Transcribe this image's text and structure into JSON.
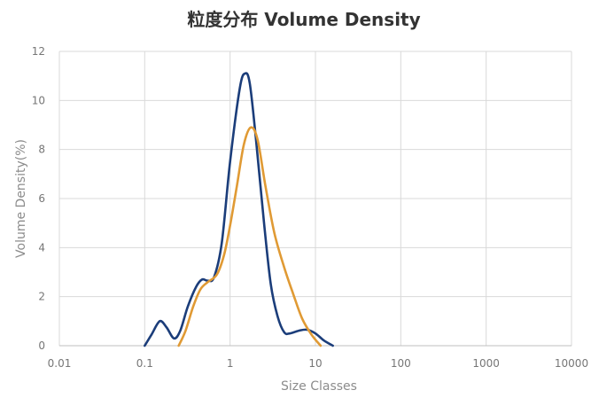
{
  "chart_data": {
    "type": "line",
    "title": "粒度分布 Volume Density",
    "xlabel": "Size Classes",
    "ylabel": "Volume Density(%)",
    "x_scale": "log",
    "xlim": [
      0.01,
      10000
    ],
    "ylim": [
      0,
      12
    ],
    "x_ticks": [
      "0.01",
      "0.1",
      "1",
      "10",
      "100",
      "1000",
      "10000"
    ],
    "y_ticks": [
      "0",
      "2",
      "4",
      "6",
      "8",
      "10",
      "12"
    ],
    "grid": true,
    "legend": "none",
    "series": [
      {
        "color": "#1b3d7a",
        "points": [
          [
            0.1,
            0.0
          ],
          [
            0.12,
            0.45
          ],
          [
            0.15,
            1.0
          ],
          [
            0.18,
            0.75
          ],
          [
            0.22,
            0.3
          ],
          [
            0.26,
            0.6
          ],
          [
            0.32,
            1.6
          ],
          [
            0.4,
            2.4
          ],
          [
            0.47,
            2.7
          ],
          [
            0.55,
            2.65
          ],
          [
            0.65,
            2.8
          ],
          [
            0.8,
            4.2
          ],
          [
            1.0,
            7.5
          ],
          [
            1.3,
            10.5
          ],
          [
            1.5,
            11.1
          ],
          [
            1.7,
            10.7
          ],
          [
            2.0,
            8.5
          ],
          [
            2.5,
            5.0
          ],
          [
            3.0,
            2.5
          ],
          [
            3.6,
            1.2
          ],
          [
            4.3,
            0.55
          ],
          [
            5.0,
            0.5
          ],
          [
            6.5,
            0.62
          ],
          [
            8.0,
            0.65
          ],
          [
            10.0,
            0.5
          ],
          [
            12.5,
            0.22
          ],
          [
            16.0,
            0.0
          ]
        ]
      },
      {
        "color": "#e09a34",
        "points": [
          [
            0.25,
            0.0
          ],
          [
            0.3,
            0.6
          ],
          [
            0.37,
            1.6
          ],
          [
            0.45,
            2.3
          ],
          [
            0.55,
            2.6
          ],
          [
            0.7,
            2.9
          ],
          [
            0.85,
            3.7
          ],
          [
            1.0,
            4.9
          ],
          [
            1.2,
            6.5
          ],
          [
            1.45,
            8.2
          ],
          [
            1.75,
            8.9
          ],
          [
            2.1,
            8.4
          ],
          [
            2.6,
            6.5
          ],
          [
            3.3,
            4.6
          ],
          [
            4.3,
            3.2
          ],
          [
            5.5,
            2.1
          ],
          [
            7.0,
            1.1
          ],
          [
            9.0,
            0.45
          ],
          [
            11.5,
            0.0
          ]
        ]
      }
    ]
  }
}
